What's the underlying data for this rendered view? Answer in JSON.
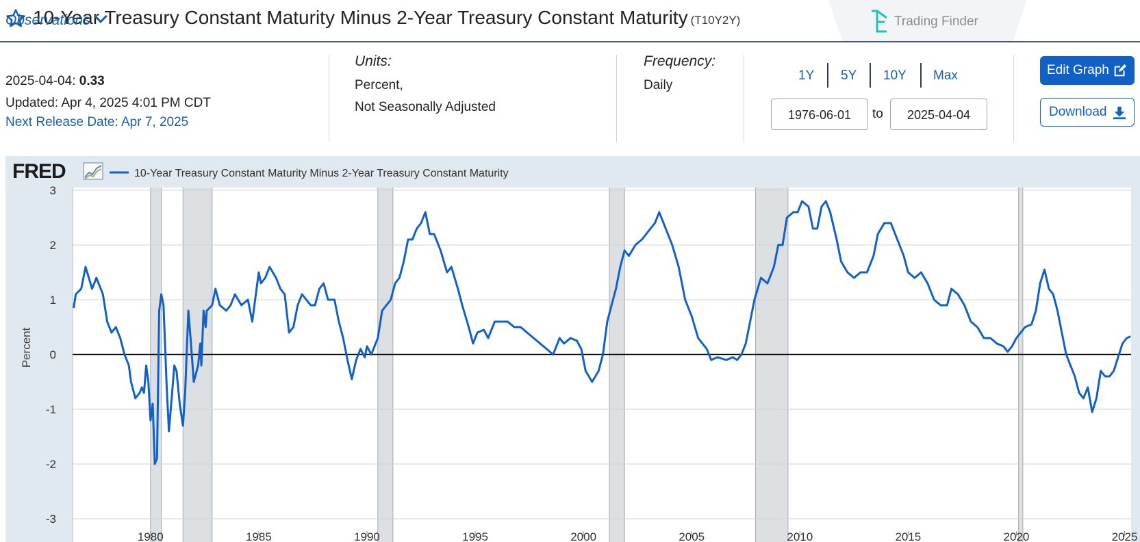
{
  "header": {
    "title": "10-Year Treasury Constant Maturity Minus 2-Year Treasury Constant Maturity",
    "series_id": "(T10Y2Y)",
    "brand": "Trading Finder",
    "brand_color": "#20c2b8"
  },
  "observations": {
    "heading": "Observations",
    "date": "2025-04-04:",
    "value": "0.33",
    "updated": "Updated: Apr 4, 2025 4:01 PM CDT",
    "next_release": "Next Release Date: Apr 7, 2025"
  },
  "units": {
    "heading": "Units:",
    "line1": "Percent,",
    "line2": "Not Seasonally Adjusted"
  },
  "frequency": {
    "heading": "Frequency:",
    "value": "Daily"
  },
  "range": {
    "buttons": [
      "1Y",
      "5Y",
      "10Y",
      "Max"
    ],
    "start": "1976-06-01",
    "to": "to",
    "end": "2025-04-04"
  },
  "actions": {
    "edit_label": "Edit Graph",
    "download_label": "Download"
  },
  "chart_data": {
    "type": "line",
    "logo": "FRED",
    "title": "10-Year Treasury Constant Maturity Minus 2-Year Treasury Constant Maturity",
    "ylabel": "Percent",
    "xlabel": "",
    "xlim": [
      1976.4,
      2025.3
    ],
    "ylim": [
      -3,
      3
    ],
    "yticks": [
      3,
      2,
      1,
      0,
      -1,
      -2,
      -3
    ],
    "xticks": [
      1980,
      1985,
      1990,
      1995,
      2000,
      2005,
      2010,
      2015,
      2020,
      2025
    ],
    "zero_line": true,
    "grid": true,
    "line_color": "#1160c6",
    "recession_color": "#dde0e3",
    "recessions": [
      [
        1980.0,
        1980.5
      ],
      [
        1981.5,
        1982.85
      ],
      [
        1990.5,
        1991.2
      ],
      [
        2001.2,
        2001.9
      ],
      [
        2007.95,
        2009.45
      ],
      [
        2020.1,
        2020.3
      ]
    ],
    "series": [
      {
        "name": "10-Year Treasury Constant Maturity Minus 2-Year Treasury Constant Maturity",
        "points": [
          [
            1976.45,
            0.85
          ],
          [
            1976.55,
            1.1
          ],
          [
            1976.8,
            1.2
          ],
          [
            1977.0,
            1.6
          ],
          [
            1977.3,
            1.2
          ],
          [
            1977.5,
            1.4
          ],
          [
            1977.8,
            1.1
          ],
          [
            1978.0,
            0.6
          ],
          [
            1978.2,
            0.4
          ],
          [
            1978.4,
            0.5
          ],
          [
            1978.6,
            0.3
          ],
          [
            1978.8,
            0.0
          ],
          [
            1979.0,
            -0.2
          ],
          [
            1979.1,
            -0.5
          ],
          [
            1979.3,
            -0.8
          ],
          [
            1979.5,
            -0.7
          ],
          [
            1979.6,
            -0.6
          ],
          [
            1979.7,
            -0.7
          ],
          [
            1979.8,
            -0.2
          ],
          [
            1979.9,
            -0.5
          ],
          [
            1980.0,
            -1.2
          ],
          [
            1980.1,
            -0.9
          ],
          [
            1980.2,
            -2.0
          ],
          [
            1980.3,
            -1.9
          ],
          [
            1980.4,
            0.8
          ],
          [
            1980.5,
            1.1
          ],
          [
            1980.6,
            0.9
          ],
          [
            1980.75,
            -0.6
          ],
          [
            1980.85,
            -1.4
          ],
          [
            1981.0,
            -0.7
          ],
          [
            1981.1,
            -0.2
          ],
          [
            1981.2,
            -0.3
          ],
          [
            1981.35,
            -0.9
          ],
          [
            1981.5,
            -1.3
          ],
          [
            1981.6,
            -0.7
          ],
          [
            1981.75,
            0.8
          ],
          [
            1981.85,
            0.3
          ],
          [
            1982.0,
            -0.5
          ],
          [
            1982.2,
            -0.2
          ],
          [
            1982.3,
            0.2
          ],
          [
            1982.35,
            -0.2
          ],
          [
            1982.45,
            0.8
          ],
          [
            1982.55,
            0.5
          ],
          [
            1982.6,
            0.8
          ],
          [
            1982.85,
            0.9
          ],
          [
            1983.0,
            1.2
          ],
          [
            1983.2,
            0.9
          ],
          [
            1983.5,
            0.8
          ],
          [
            1983.7,
            0.9
          ],
          [
            1983.9,
            1.1
          ],
          [
            1984.2,
            0.9
          ],
          [
            1984.5,
            1.0
          ],
          [
            1984.7,
            0.6
          ],
          [
            1985.0,
            1.5
          ],
          [
            1985.1,
            1.3
          ],
          [
            1985.3,
            1.4
          ],
          [
            1985.5,
            1.6
          ],
          [
            1985.8,
            1.4
          ],
          [
            1986.0,
            1.2
          ],
          [
            1986.2,
            1.1
          ],
          [
            1986.4,
            0.4
          ],
          [
            1986.6,
            0.5
          ],
          [
            1986.8,
            0.9
          ],
          [
            1987.0,
            1.1
          ],
          [
            1987.2,
            1.0
          ],
          [
            1987.4,
            0.9
          ],
          [
            1987.6,
            0.9
          ],
          [
            1987.8,
            1.2
          ],
          [
            1988.0,
            1.3
          ],
          [
            1988.2,
            1.0
          ],
          [
            1988.5,
            1.0
          ],
          [
            1988.7,
            0.6
          ],
          [
            1988.9,
            0.3
          ],
          [
            1989.1,
            -0.1
          ],
          [
            1989.3,
            -0.45
          ],
          [
            1989.5,
            -0.1
          ],
          [
            1989.7,
            0.1
          ],
          [
            1989.9,
            -0.05
          ],
          [
            1990.0,
            0.15
          ],
          [
            1990.2,
            0.0
          ],
          [
            1990.5,
            0.3
          ],
          [
            1990.7,
            0.8
          ],
          [
            1990.9,
            0.9
          ],
          [
            1991.1,
            1.0
          ],
          [
            1991.3,
            1.3
          ],
          [
            1991.5,
            1.4
          ],
          [
            1991.7,
            1.7
          ],
          [
            1991.9,
            2.1
          ],
          [
            1992.1,
            2.1
          ],
          [
            1992.3,
            2.3
          ],
          [
            1992.5,
            2.4
          ],
          [
            1992.7,
            2.6
          ],
          [
            1992.9,
            2.2
          ],
          [
            1993.1,
            2.2
          ],
          [
            1993.4,
            1.9
          ],
          [
            1993.7,
            1.5
          ],
          [
            1993.9,
            1.6
          ],
          [
            1994.2,
            1.2
          ],
          [
            1994.4,
            0.9
          ],
          [
            1994.7,
            0.5
          ],
          [
            1994.9,
            0.2
          ],
          [
            1995.1,
            0.4
          ],
          [
            1995.4,
            0.45
          ],
          [
            1995.6,
            0.3
          ],
          [
            1995.9,
            0.6
          ],
          [
            1996.2,
            0.6
          ],
          [
            1996.5,
            0.6
          ],
          [
            1996.8,
            0.5
          ],
          [
            1997.1,
            0.5
          ],
          [
            1997.4,
            0.4
          ],
          [
            1997.7,
            0.3
          ],
          [
            1998.0,
            0.2
          ],
          [
            1998.3,
            0.1
          ],
          [
            1998.6,
            0.0
          ],
          [
            1998.9,
            0.3
          ],
          [
            1999.1,
            0.2
          ],
          [
            1999.4,
            0.3
          ],
          [
            1999.7,
            0.25
          ],
          [
            1999.9,
            0.1
          ],
          [
            2000.1,
            -0.3
          ],
          [
            2000.4,
            -0.5
          ],
          [
            2000.7,
            -0.3
          ],
          [
            2000.9,
            0.0
          ],
          [
            2001.1,
            0.6
          ],
          [
            2001.3,
            0.9
          ],
          [
            2001.5,
            1.2
          ],
          [
            2001.7,
            1.6
          ],
          [
            2001.9,
            1.9
          ],
          [
            2002.1,
            1.8
          ],
          [
            2002.4,
            2.0
          ],
          [
            2002.7,
            2.1
          ],
          [
            2002.9,
            2.2
          ],
          [
            2003.1,
            2.3
          ],
          [
            2003.3,
            2.4
          ],
          [
            2003.5,
            2.6
          ],
          [
            2003.8,
            2.3
          ],
          [
            2004.1,
            2.0
          ],
          [
            2004.4,
            1.6
          ],
          [
            2004.7,
            1.0
          ],
          [
            2005.0,
            0.7
          ],
          [
            2005.3,
            0.3
          ],
          [
            2005.7,
            0.1
          ],
          [
            2005.9,
            -0.1
          ],
          [
            2006.2,
            -0.05
          ],
          [
            2006.6,
            -0.1
          ],
          [
            2006.9,
            -0.05
          ],
          [
            2007.1,
            -0.1
          ],
          [
            2007.3,
            0.0
          ],
          [
            2007.5,
            0.2
          ],
          [
            2007.7,
            0.6
          ],
          [
            2007.9,
            1.0
          ],
          [
            2008.2,
            1.4
          ],
          [
            2008.5,
            1.3
          ],
          [
            2008.8,
            1.6
          ],
          [
            2009.0,
            2.0
          ],
          [
            2009.2,
            2.0
          ],
          [
            2009.4,
            2.5
          ],
          [
            2009.7,
            2.6
          ],
          [
            2009.9,
            2.6
          ],
          [
            2010.1,
            2.8
          ],
          [
            2010.4,
            2.7
          ],
          [
            2010.6,
            2.3
          ],
          [
            2010.8,
            2.3
          ],
          [
            2011.0,
            2.7
          ],
          [
            2011.2,
            2.8
          ],
          [
            2011.4,
            2.6
          ],
          [
            2011.7,
            2.1
          ],
          [
            2011.9,
            1.7
          ],
          [
            2012.2,
            1.5
          ],
          [
            2012.5,
            1.4
          ],
          [
            2012.8,
            1.5
          ],
          [
            2013.1,
            1.5
          ],
          [
            2013.4,
            1.8
          ],
          [
            2013.6,
            2.2
          ],
          [
            2013.9,
            2.4
          ],
          [
            2014.2,
            2.4
          ],
          [
            2014.5,
            2.1
          ],
          [
            2014.8,
            1.8
          ],
          [
            2015.0,
            1.5
          ],
          [
            2015.3,
            1.4
          ],
          [
            2015.6,
            1.5
          ],
          [
            2015.9,
            1.3
          ],
          [
            2016.2,
            1.0
          ],
          [
            2016.5,
            0.9
          ],
          [
            2016.8,
            0.9
          ],
          [
            2017.0,
            1.2
          ],
          [
            2017.3,
            1.1
          ],
          [
            2017.6,
            0.9
          ],
          [
            2017.9,
            0.6
          ],
          [
            2018.2,
            0.5
          ],
          [
            2018.5,
            0.3
          ],
          [
            2018.8,
            0.3
          ],
          [
            2019.1,
            0.2
          ],
          [
            2019.4,
            0.15
          ],
          [
            2019.6,
            0.05
          ],
          [
            2019.8,
            0.15
          ],
          [
            2020.0,
            0.3
          ],
          [
            2020.2,
            0.4
          ],
          [
            2020.4,
            0.5
          ],
          [
            2020.7,
            0.55
          ],
          [
            2020.9,
            0.8
          ],
          [
            2021.1,
            1.3
          ],
          [
            2021.3,
            1.55
          ],
          [
            2021.5,
            1.2
          ],
          [
            2021.7,
            1.1
          ],
          [
            2021.9,
            0.8
          ],
          [
            2022.1,
            0.4
          ],
          [
            2022.3,
            0.0
          ],
          [
            2022.5,
            -0.2
          ],
          [
            2022.7,
            -0.4
          ],
          [
            2022.9,
            -0.7
          ],
          [
            2023.1,
            -0.8
          ],
          [
            2023.3,
            -0.6
          ],
          [
            2023.5,
            -1.05
          ],
          [
            2023.7,
            -0.8
          ],
          [
            2023.9,
            -0.3
          ],
          [
            2024.1,
            -0.4
          ],
          [
            2024.3,
            -0.4
          ],
          [
            2024.5,
            -0.3
          ],
          [
            2024.7,
            -0.05
          ],
          [
            2024.9,
            0.2
          ],
          [
            2025.1,
            0.3
          ],
          [
            2025.27,
            0.33
          ]
        ]
      }
    ]
  }
}
